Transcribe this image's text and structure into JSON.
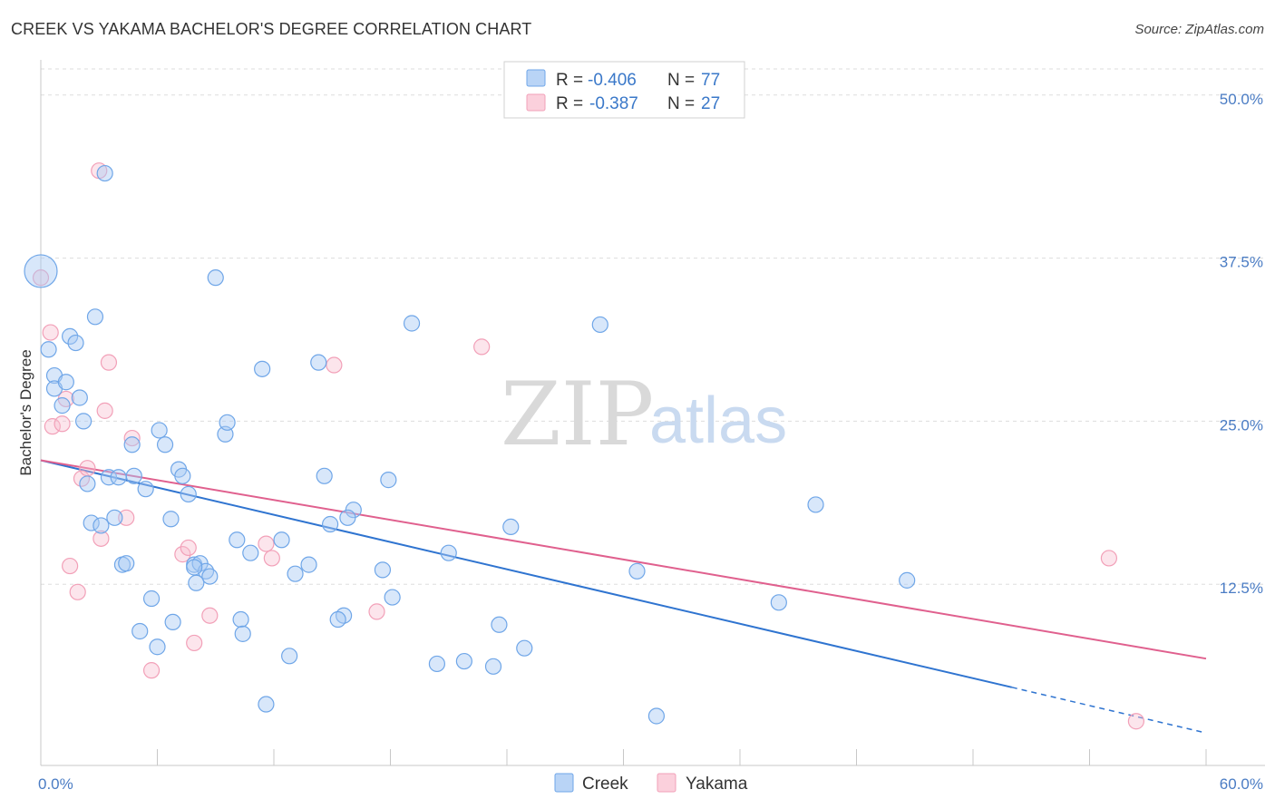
{
  "title": "CREEK VS YAKAMA BACHELOR'S DEGREE CORRELATION CHART",
  "source": "Source: ZipAtlas.com",
  "watermark": {
    "zip": "ZIP",
    "atlas": "atlas"
  },
  "chart_data": {
    "type": "scatter",
    "ylabel": "Bachelor's Degree",
    "xlim": [
      0,
      60
    ],
    "ylim": [
      0,
      52
    ],
    "x_tick_labels": [
      {
        "value": 0,
        "label": "0.0%"
      },
      {
        "value": 60,
        "label": "60.0%"
      }
    ],
    "y_tick_labels": [
      {
        "value": 12.5,
        "label": "12.5%"
      },
      {
        "value": 25.0,
        "label": "25.0%"
      },
      {
        "value": 37.5,
        "label": "37.5%"
      },
      {
        "value": 50.0,
        "label": "50.0%"
      }
    ],
    "grid": true,
    "legend_position": "top-center",
    "colors": {
      "creek": "#6fa6e8",
      "creek_line": "#2f74d0",
      "yakama": "#f2a0b8",
      "yakama_line": "#e0608e"
    },
    "series": [
      {
        "name": "Creek",
        "legend_r": "R =",
        "legend_r_value": "-0.406",
        "legend_n": "N =",
        "legend_n_value": "77",
        "trend": {
          "x": [
            0,
            50
          ],
          "y": [
            22.0,
            4.6
          ],
          "dashed_to": [
            60,
            1.1
          ]
        },
        "points": [
          [
            0.0,
            36.5,
            "big"
          ],
          [
            0.4,
            30.5
          ],
          [
            0.7,
            28.5
          ],
          [
            0.7,
            27.5
          ],
          [
            1.3,
            28.0
          ],
          [
            1.1,
            26.2
          ],
          [
            2.0,
            26.8
          ],
          [
            2.2,
            25.0
          ],
          [
            1.5,
            31.5
          ],
          [
            1.8,
            31.0
          ],
          [
            2.8,
            33.0
          ],
          [
            3.3,
            44.0
          ],
          [
            3.5,
            20.7
          ],
          [
            4.0,
            20.7
          ],
          [
            2.4,
            20.2
          ],
          [
            2.6,
            17.2
          ],
          [
            3.1,
            17.0
          ],
          [
            3.8,
            17.6
          ],
          [
            4.7,
            23.2
          ],
          [
            4.8,
            20.8
          ],
          [
            5.4,
            19.8
          ],
          [
            6.1,
            24.3
          ],
          [
            6.4,
            23.2
          ],
          [
            7.1,
            21.3
          ],
          [
            7.3,
            20.8
          ],
          [
            7.6,
            19.4
          ],
          [
            6.7,
            17.5
          ],
          [
            4.2,
            14.0
          ],
          [
            4.4,
            14.1
          ],
          [
            5.7,
            11.4
          ],
          [
            7.9,
            14.0
          ],
          [
            8.2,
            14.1
          ],
          [
            8.5,
            13.5
          ],
          [
            8.7,
            13.1
          ],
          [
            7.9,
            13.8
          ],
          [
            8.0,
            12.6
          ],
          [
            5.1,
            8.9
          ],
          [
            6.0,
            7.7
          ],
          [
            6.8,
            9.6
          ],
          [
            9.0,
            36.0
          ],
          [
            9.5,
            24.0
          ],
          [
            9.6,
            24.9
          ],
          [
            10.1,
            15.9
          ],
          [
            10.8,
            14.9
          ],
          [
            11.4,
            29.0
          ],
          [
            12.4,
            15.9
          ],
          [
            13.1,
            13.3
          ],
          [
            13.8,
            14.0
          ],
          [
            10.3,
            9.8
          ],
          [
            10.4,
            8.7
          ],
          [
            12.8,
            7.0
          ],
          [
            11.6,
            3.3
          ],
          [
            14.3,
            29.5
          ],
          [
            14.6,
            20.8
          ],
          [
            14.9,
            17.1
          ],
          [
            16.1,
            18.2
          ],
          [
            15.8,
            17.6
          ],
          [
            15.6,
            10.1
          ],
          [
            15.3,
            9.8
          ],
          [
            17.6,
            13.6
          ],
          [
            18.1,
            11.5
          ],
          [
            17.9,
            20.5
          ],
          [
            19.1,
            32.5
          ],
          [
            20.4,
            6.4
          ],
          [
            21.8,
            6.6
          ],
          [
            21.0,
            14.9
          ],
          [
            23.3,
            6.2
          ],
          [
            23.6,
            9.4
          ],
          [
            24.2,
            16.9
          ],
          [
            24.9,
            7.6
          ],
          [
            28.8,
            32.4
          ],
          [
            30.7,
            13.5
          ],
          [
            31.7,
            2.4
          ],
          [
            38.0,
            11.1
          ],
          [
            39.9,
            18.6
          ],
          [
            44.6,
            12.8
          ]
        ]
      },
      {
        "name": "Yakama",
        "legend_r": "R =",
        "legend_r_value": "-0.387",
        "legend_n": "N =",
        "legend_n_value": "27",
        "trend": {
          "x": [
            0,
            60
          ],
          "y": [
            22.0,
            6.8
          ]
        },
        "points": [
          [
            0.0,
            36.0
          ],
          [
            0.5,
            31.8
          ],
          [
            0.6,
            24.6
          ],
          [
            1.1,
            24.8
          ],
          [
            1.3,
            26.7
          ],
          [
            1.5,
            13.9
          ],
          [
            1.9,
            11.9
          ],
          [
            2.1,
            20.6
          ],
          [
            2.4,
            21.4
          ],
          [
            3.1,
            16.0
          ],
          [
            3.3,
            25.8
          ],
          [
            3.5,
            29.5
          ],
          [
            3.0,
            44.2
          ],
          [
            4.4,
            17.6
          ],
          [
            4.7,
            23.7
          ],
          [
            5.7,
            5.9
          ],
          [
            7.3,
            14.8
          ],
          [
            7.6,
            15.3
          ],
          [
            7.9,
            8.0
          ],
          [
            8.7,
            10.1
          ],
          [
            11.6,
            15.6
          ],
          [
            11.9,
            14.5
          ],
          [
            15.1,
            29.3
          ],
          [
            17.3,
            10.4
          ],
          [
            22.7,
            30.7
          ],
          [
            55.0,
            14.5
          ],
          [
            56.4,
            2.0
          ]
        ]
      }
    ]
  }
}
